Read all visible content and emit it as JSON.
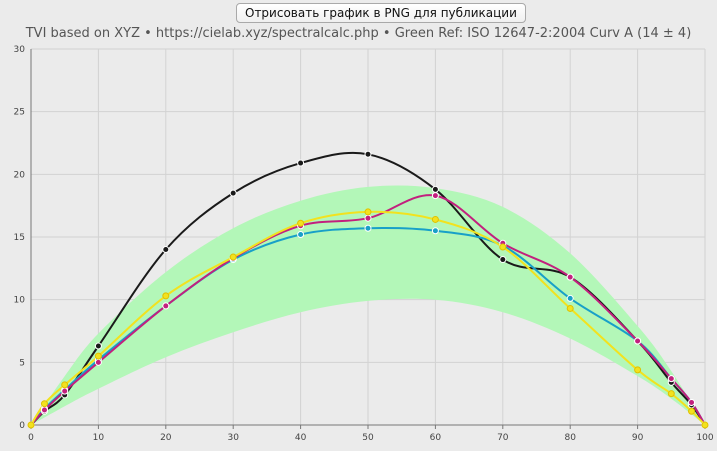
{
  "toolbar": {
    "export_label": "Отрисовать график в PNG для публикации"
  },
  "chart_data": {
    "type": "line",
    "title": "TVI based on XYZ  •  https://cielab.xyz/spectralcalc.php  •  Green Ref: ISO 12647-2:2004 Curv A (14 ± 4)",
    "xlim": [
      0,
      100
    ],
    "ylim": [
      0,
      30
    ],
    "xticks": [
      0,
      10,
      20,
      30,
      40,
      50,
      60,
      70,
      80,
      90,
      100
    ],
    "yticks": [
      0,
      5,
      10,
      15,
      20,
      25,
      30
    ],
    "grid": true,
    "reference_band": {
      "color": "#b3f7b8",
      "x": [
        0,
        5,
        10,
        20,
        30,
        40,
        50,
        60,
        70,
        80,
        90,
        95,
        100
      ],
      "lower": [
        0,
        1.5,
        2.9,
        5.4,
        7.4,
        9.0,
        9.9,
        10.0,
        9.0,
        6.9,
        3.9,
        2.1,
        0
      ],
      "upper": [
        0,
        3.9,
        7.3,
        12.2,
        15.7,
        17.9,
        19.0,
        18.9,
        17.4,
        13.7,
        7.9,
        4.3,
        0
      ]
    },
    "series": [
      {
        "color": "#1a1a1a",
        "x": [
          0,
          2,
          5,
          10,
          20,
          30,
          40,
          50,
          60,
          70,
          80,
          90,
          95,
          98,
          100
        ],
        "y": [
          0,
          1.1,
          2.4,
          6.3,
          14.0,
          18.5,
          20.9,
          21.6,
          18.8,
          13.2,
          11.8,
          6.7,
          3.4,
          1.6,
          0
        ]
      },
      {
        "color": "#18a0c8",
        "x": [
          0,
          2,
          5,
          10,
          20,
          30,
          40,
          50,
          60,
          70,
          80,
          90,
          95,
          98,
          100
        ],
        "y": [
          0,
          1.3,
          2.8,
          5.2,
          9.5,
          13.2,
          15.2,
          15.7,
          15.5,
          14.3,
          10.1,
          6.7,
          3.7,
          1.8,
          0
        ]
      },
      {
        "color": "#c2207e",
        "x": [
          0,
          2,
          5,
          10,
          20,
          30,
          40,
          50,
          60,
          70,
          80,
          90,
          95,
          98,
          100
        ],
        "y": [
          0,
          1.2,
          2.7,
          5.0,
          9.5,
          13.3,
          15.9,
          16.5,
          18.3,
          14.5,
          11.8,
          6.7,
          3.7,
          1.8,
          0
        ]
      },
      {
        "color": "#f2e21e",
        "x": [
          0,
          2,
          5,
          10,
          20,
          30,
          40,
          50,
          60,
          70,
          80,
          90,
          95,
          98,
          100
        ],
        "y": [
          0,
          1.7,
          3.2,
          5.5,
          10.3,
          13.4,
          16.1,
          17.0,
          16.4,
          14.2,
          9.3,
          4.4,
          2.5,
          1.1,
          0
        ]
      }
    ]
  }
}
